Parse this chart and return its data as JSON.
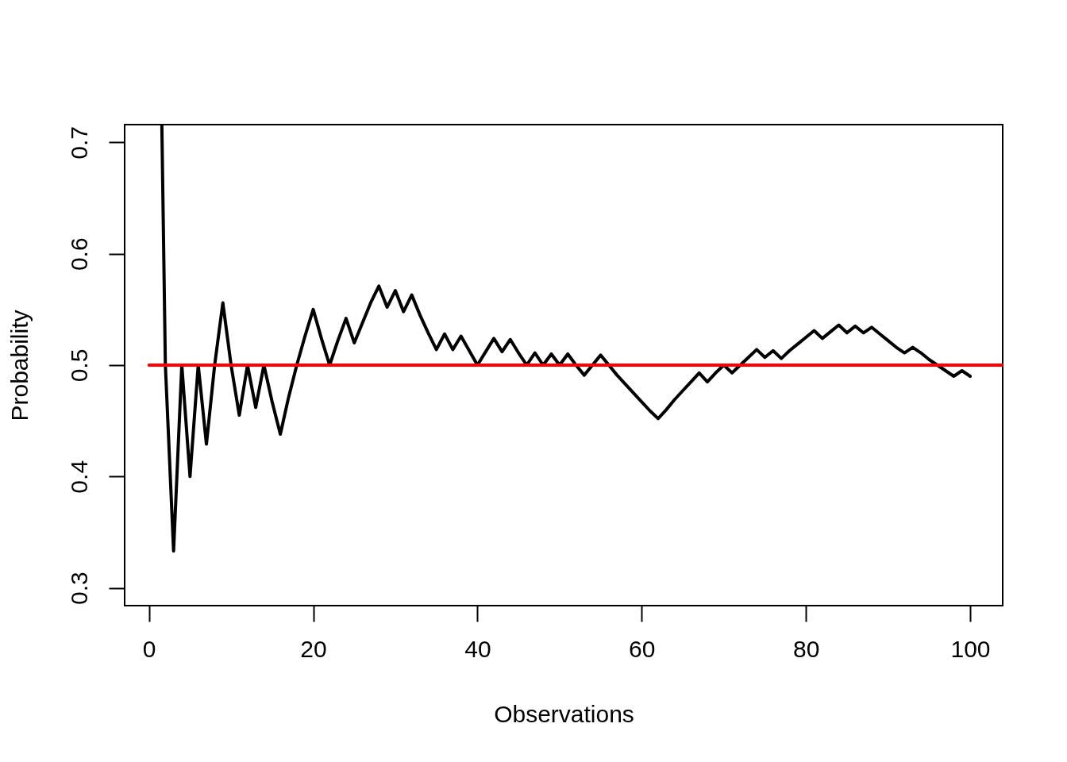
{
  "chart_data": {
    "type": "line",
    "xlabel": "Observations",
    "ylabel": "Probability",
    "xlim": [
      -2.96,
      103.96
    ],
    "ylim": [
      0.284,
      0.716
    ],
    "xticks": [
      0,
      20,
      40,
      60,
      80,
      100
    ],
    "yticks": [
      0.3,
      0.4,
      0.5,
      0.6,
      0.7
    ],
    "grid": false,
    "line_style": "solid",
    "series": [
      {
        "color": "#000000",
        "x": [
          1.57,
          2,
          3,
          4,
          5,
          6,
          7,
          8,
          9,
          10,
          11,
          12,
          13,
          14,
          15,
          16,
          17,
          18,
          19,
          20,
          21,
          22,
          23,
          24,
          25,
          26,
          27,
          28,
          29,
          30,
          31,
          32,
          33,
          34,
          35,
          36,
          37,
          38,
          39,
          40,
          41,
          42,
          43,
          44,
          45,
          46,
          47,
          48,
          49,
          50,
          51,
          52,
          53,
          54,
          55,
          56,
          57,
          58,
          59,
          60,
          61,
          62,
          63,
          64,
          65,
          66,
          67,
          68,
          69,
          70,
          71,
          72,
          73,
          74,
          75,
          76,
          77,
          78,
          79,
          80,
          81,
          82,
          83,
          84,
          85,
          86,
          87,
          88,
          89,
          90,
          91,
          92,
          93,
          94,
          95,
          96,
          97,
          98,
          99,
          100
        ],
        "values": [
          0.716,
          0.5,
          0.333,
          0.5,
          0.4,
          0.5,
          0.429,
          0.5,
          0.556,
          0.5,
          0.455,
          0.5,
          0.462,
          0.5,
          0.467,
          0.438,
          0.471,
          0.5,
          0.526,
          0.55,
          0.524,
          0.5,
          0.522,
          0.542,
          0.52,
          0.538,
          0.556,
          0.571,
          0.552,
          0.567,
          0.548,
          0.563,
          0.545,
          0.529,
          0.514,
          0.528,
          0.514,
          0.526,
          0.513,
          0.5,
          0.512,
          0.524,
          0.512,
          0.523,
          0.511,
          0.5,
          0.511,
          0.5,
          0.51,
          0.5,
          0.51,
          0.5,
          0.491,
          0.5,
          0.509,
          0.5,
          0.491,
          0.483,
          0.475,
          0.467,
          0.459,
          0.452,
          0.46,
          0.469,
          0.477,
          0.485,
          0.493,
          0.485,
          0.493,
          0.5,
          0.493,
          0.5,
          0.507,
          0.514,
          0.507,
          0.513,
          0.506,
          0.513,
          0.519,
          0.525,
          0.531,
          0.524,
          0.53,
          0.536,
          0.529,
          0.535,
          0.529,
          0.534,
          0.528,
          0.522,
          0.516,
          0.511,
          0.516,
          0.511,
          0.505,
          0.5,
          0.495,
          0.49,
          0.495,
          0.49
        ]
      },
      {
        "color": "#ff0000",
        "x": [
          0,
          103.96
        ],
        "values": [
          0.5,
          0.5
        ]
      }
    ]
  }
}
